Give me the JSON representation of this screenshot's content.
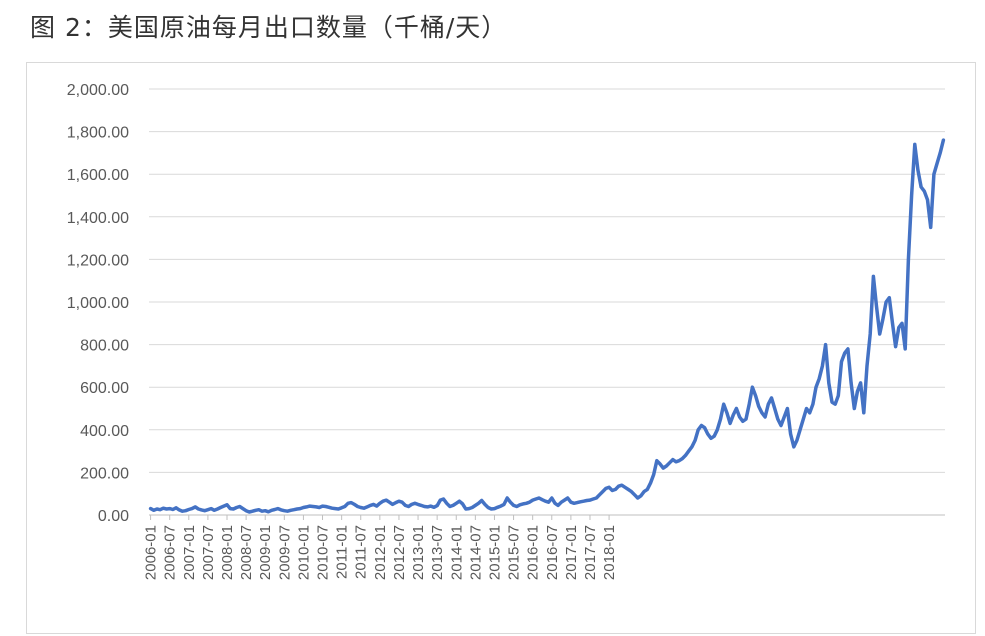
{
  "caption": "图 2：美国原油每月出口数量（千桶/天）",
  "chart_data": {
    "type": "line",
    "title": "",
    "xlabel": "",
    "ylabel": "",
    "ylim": [
      0,
      2000
    ],
    "yticks": [
      0,
      200,
      400,
      600,
      800,
      1000,
      1200,
      1400,
      1600,
      1800,
      2000
    ],
    "ytick_labels": [
      "0.00",
      "200.00",
      "400.00",
      "600.00",
      "800.00",
      "1,000.00",
      "1,200.00",
      "1,400.00",
      "1,600.00",
      "1,800.00",
      "2,000.00"
    ],
    "x_tick_labels": [
      "2006-01",
      "2006-07",
      "2007-01",
      "2007-07",
      "2008-01",
      "2008-07",
      "2009-01",
      "2009-07",
      "2010-01",
      "2010-07",
      "2011-01",
      "2011-07",
      "2012-01",
      "2012-07",
      "2013-01",
      "2013-07",
      "2014-01",
      "2014-07",
      "2015-01",
      "2015-07",
      "2016-01",
      "2016-07",
      "2017-01",
      "2017-07",
      "2018-01"
    ],
    "grid": true,
    "legend": "none",
    "colors": {
      "line": "#4472c4",
      "grid": "#d9d9d9",
      "axis": "#bfbfbf",
      "text": "#595959"
    },
    "series": [
      {
        "x_start": "2006-01",
        "frequency": "monthly",
        "values": [
          30,
          22,
          28,
          25,
          32,
          28,
          30,
          26,
          34,
          24,
          18,
          20,
          26,
          30,
          38,
          28,
          24,
          20,
          25,
          30,
          22,
          28,
          35,
          42,
          48,
          30,
          28,
          35,
          40,
          30,
          20,
          14,
          18,
          22,
          25,
          18,
          20,
          15,
          22,
          26,
          30,
          24,
          20,
          18,
          22,
          25,
          28,
          30,
          35,
          38,
          42,
          40,
          38,
          35,
          42,
          40,
          36,
          32,
          30,
          28,
          34,
          40,
          55,
          58,
          50,
          40,
          35,
          32,
          38,
          45,
          50,
          42,
          55,
          65,
          70,
          60,
          50,
          58,
          65,
          60,
          45,
          40,
          50,
          55,
          50,
          45,
          40,
          38,
          42,
          36,
          44,
          70,
          75,
          55,
          40,
          45,
          55,
          65,
          52,
          28,
          30,
          35,
          45,
          55,
          68,
          50,
          35,
          28,
          30,
          36,
          42,
          50,
          80,
          60,
          45,
          40,
          48,
          52,
          55,
          60,
          70,
          75,
          80,
          72,
          65,
          60,
          80,
          55,
          45,
          60,
          70,
          80,
          60,
          55,
          58,
          62,
          65,
          68,
          70,
          75,
          80,
          95,
          110,
          125,
          130,
          115,
          120,
          135,
          140,
          130,
          120,
          110,
          95,
          80,
          90,
          110,
          120,
          150,
          190,
          255,
          240,
          220,
          230,
          245,
          260,
          250,
          255,
          265,
          280,
          300,
          320,
          350,
          400,
          420,
          410,
          380,
          360,
          370,
          400,
          450,
          520,
          480,
          430,
          470,
          500,
          460,
          440,
          450,
          520,
          600,
          560,
          510,
          480,
          460,
          520,
          550,
          500,
          450,
          420,
          460,
          500,
          380,
          320,
          350,
          400,
          450,
          500,
          480,
          520,
          600,
          640,
          700,
          800,
          620,
          530,
          520,
          560,
          720,
          760,
          780,
          620,
          500,
          580,
          620,
          480,
          700,
          850,
          1120,
          980,
          850,
          920,
          1000,
          1020,
          900,
          790,
          880,
          900,
          780,
          1200,
          1500,
          1740,
          1620,
          1540,
          1520,
          1480,
          1350,
          1600,
          1650,
          1700,
          1760
        ]
      }
    ]
  }
}
